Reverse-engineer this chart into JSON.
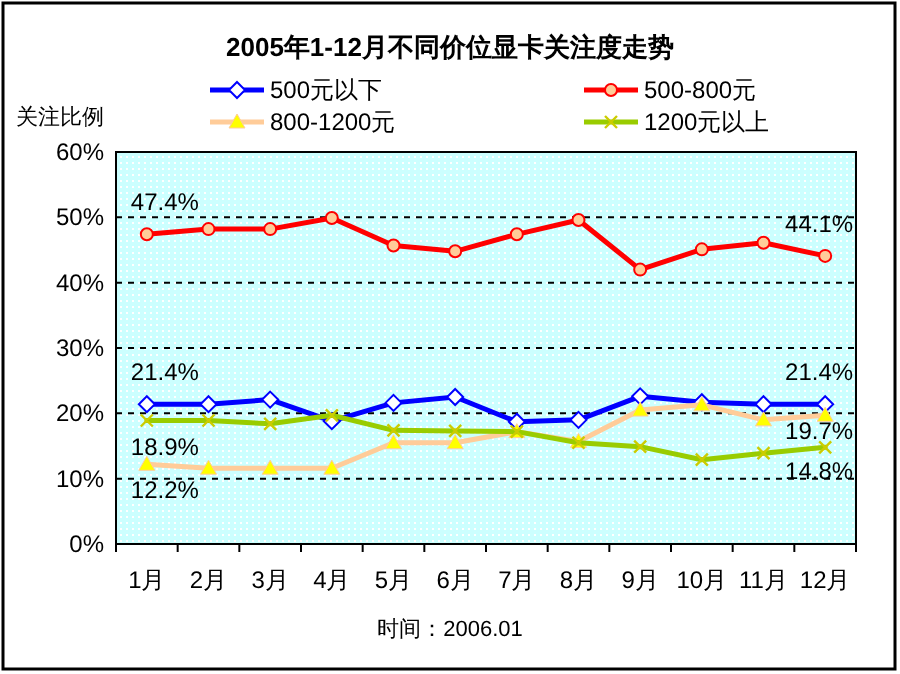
{
  "chart_data": {
    "type": "line",
    "title": "2005年1-12月不同价位显卡关注度走势",
    "ylabel": "关注比例",
    "categories": [
      "1月",
      "2月",
      "3月",
      "4月",
      "5月",
      "6月",
      "7月",
      "8月",
      "9月",
      "10月",
      "11月",
      "12月"
    ],
    "series": [
      {
        "name": "500元以下",
        "color": "#0000ff",
        "marker": "diamond",
        "values": [
          21.4,
          21.4,
          22.1,
          18.8,
          21.6,
          22.5,
          18.7,
          19.0,
          22.6,
          21.7,
          21.4,
          21.4
        ],
        "value_labels": [
          "21.4%",
          null,
          null,
          null,
          null,
          null,
          null,
          null,
          null,
          null,
          null,
          "21.4%"
        ]
      },
      {
        "name": "500-800元",
        "color": "#ff0000",
        "marker": "circle",
        "values": [
          47.4,
          48.2,
          48.2,
          49.9,
          45.7,
          44.8,
          47.4,
          49.6,
          42.0,
          45.1,
          46.1,
          44.1
        ],
        "value_labels": [
          "47.4%",
          null,
          null,
          null,
          null,
          null,
          null,
          null,
          null,
          null,
          null,
          "44.1%"
        ]
      },
      {
        "name": "800-1200元",
        "color": "#ffcc99",
        "marker": "triangle",
        "values": [
          12.2,
          11.6,
          11.6,
          11.6,
          15.5,
          15.5,
          17.2,
          15.7,
          20.5,
          21.3,
          19.0,
          19.7
        ],
        "value_labels": [
          "12.2%",
          null,
          null,
          null,
          null,
          null,
          null,
          null,
          null,
          null,
          null,
          "19.7%"
        ]
      },
      {
        "name": "1200元以上",
        "color": "#99cc00",
        "marker": "cross",
        "values": [
          18.9,
          18.9,
          18.4,
          19.7,
          17.4,
          17.3,
          17.2,
          15.5,
          14.9,
          12.9,
          13.9,
          14.8
        ],
        "value_labels": [
          "18.9%",
          null,
          null,
          null,
          null,
          null,
          null,
          null,
          null,
          null,
          null,
          "14.8%"
        ]
      }
    ],
    "ylim": [
      0,
      60
    ],
    "yticks": [
      {
        "value": 0,
        "label": "0%"
      },
      {
        "value": 10,
        "label": "10%"
      },
      {
        "value": 20,
        "label": "20%"
      },
      {
        "value": 30,
        "label": "30%"
      },
      {
        "value": 40,
        "label": "40%"
      },
      {
        "value": 50,
        "label": "50%"
      },
      {
        "value": 60,
        "label": "60%"
      }
    ],
    "grid": "y",
    "legend": "top",
    "line_style": "solid",
    "annotations": [
      "时间：2006.01"
    ]
  }
}
